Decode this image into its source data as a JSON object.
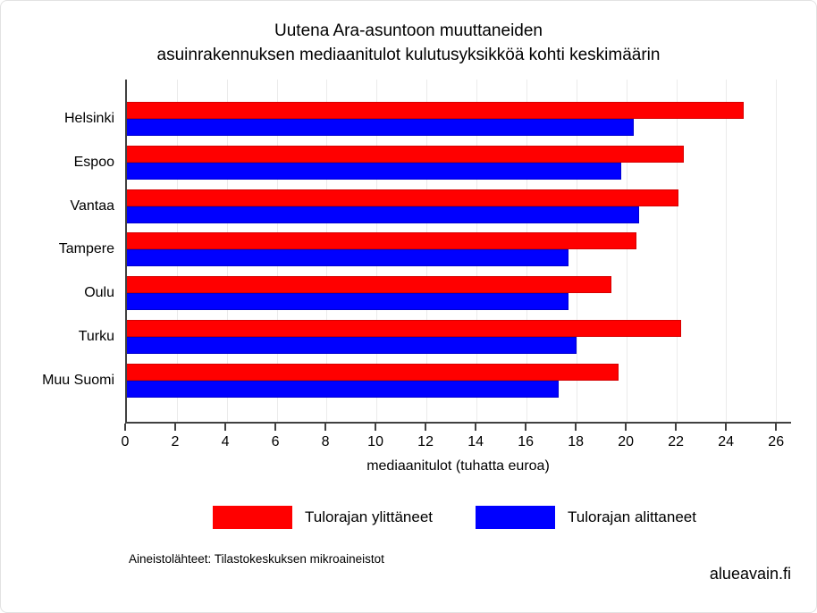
{
  "title": {
    "line1": "Uutena Ara-asuntoon muuttaneiden",
    "line2": "asuinrakennuksen mediaanitulot kulutusyksikköä kohti keskimäärin"
  },
  "chart_data": {
    "type": "bar",
    "orientation": "horizontal",
    "categories": [
      "Helsinki",
      "Espoo",
      "Vantaa",
      "Tampere",
      "Oulu",
      "Turku",
      "Muu Suomi"
    ],
    "series": [
      {
        "name": "Tulorajan ylittäneet",
        "color": "#ff0000",
        "values": [
          24.7,
          22.3,
          22.1,
          20.4,
          19.4,
          22.2,
          19.7
        ]
      },
      {
        "name": "Tulorajan alittaneet",
        "color": "#0000ff",
        "values": [
          20.3,
          19.8,
          20.5,
          17.7,
          17.7,
          18.0,
          17.3
        ]
      }
    ],
    "xlabel": "mediaanitulot (tuhatta euroa)",
    "xticks": [
      0,
      2,
      4,
      6,
      8,
      10,
      12,
      14,
      16,
      18,
      20,
      22,
      24,
      26
    ],
    "xlim": [
      0,
      26.6
    ],
    "grid": "vertical-light",
    "legend_position": "bottom"
  },
  "legend": {
    "items": [
      {
        "label": "Tulorajan ylittäneet",
        "color": "#ff0000"
      },
      {
        "label": "Tulorajan alittaneet",
        "color": "#0000ff"
      }
    ]
  },
  "footer": {
    "source_note": "Aineistolähteet: Tilastokeskuksen mikroaineistot",
    "brand": "alueavain.fi"
  },
  "colors": {
    "bar_red": "#ff0000",
    "bar_blue": "#0000ff",
    "axis": "#404040",
    "gridline": "#ebebeb",
    "text": "#000000"
  }
}
